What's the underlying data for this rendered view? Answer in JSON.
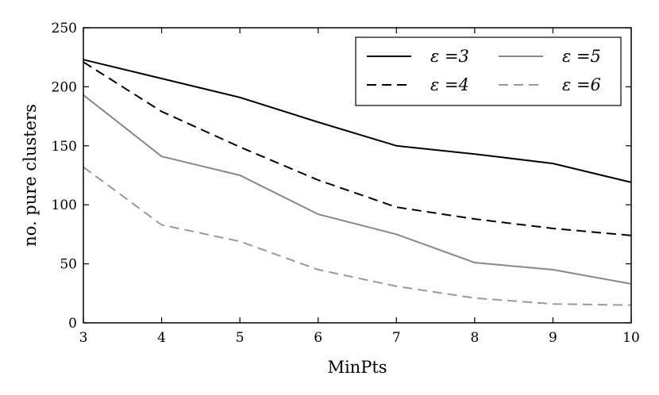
{
  "chart_data": {
    "type": "line",
    "xlabel": "MinPts",
    "ylabel": "no. pure clusters",
    "x": [
      3,
      4,
      5,
      6,
      7,
      8,
      9,
      10
    ],
    "xlim": [
      3,
      10
    ],
    "ylim": [
      0,
      250
    ],
    "xticks": [
      3,
      4,
      5,
      6,
      7,
      8,
      9,
      10
    ],
    "yticks": [
      0,
      50,
      100,
      150,
      200,
      250
    ],
    "grid": false,
    "legend": {
      "placement": "top-right",
      "columns": 2
    },
    "series": [
      {
        "name": "ε =3",
        "color": "#000000",
        "dash": "solid",
        "values": [
          223,
          207,
          191,
          170,
          150,
          143,
          135,
          119
        ]
      },
      {
        "name": "ε =4",
        "color": "#000000",
        "dash": "dashed",
        "values": [
          221,
          179,
          149,
          121,
          98,
          88,
          80,
          74
        ]
      },
      {
        "name": "ε =5",
        "color": "#888888",
        "dash": "solid",
        "values": [
          193,
          141,
          125,
          92,
          75,
          51,
          45,
          33
        ]
      },
      {
        "name": "ε =6",
        "color": "#999999",
        "dash": "dashed",
        "values": [
          132,
          83,
          69,
          45,
          31,
          21,
          16,
          15
        ]
      }
    ]
  }
}
